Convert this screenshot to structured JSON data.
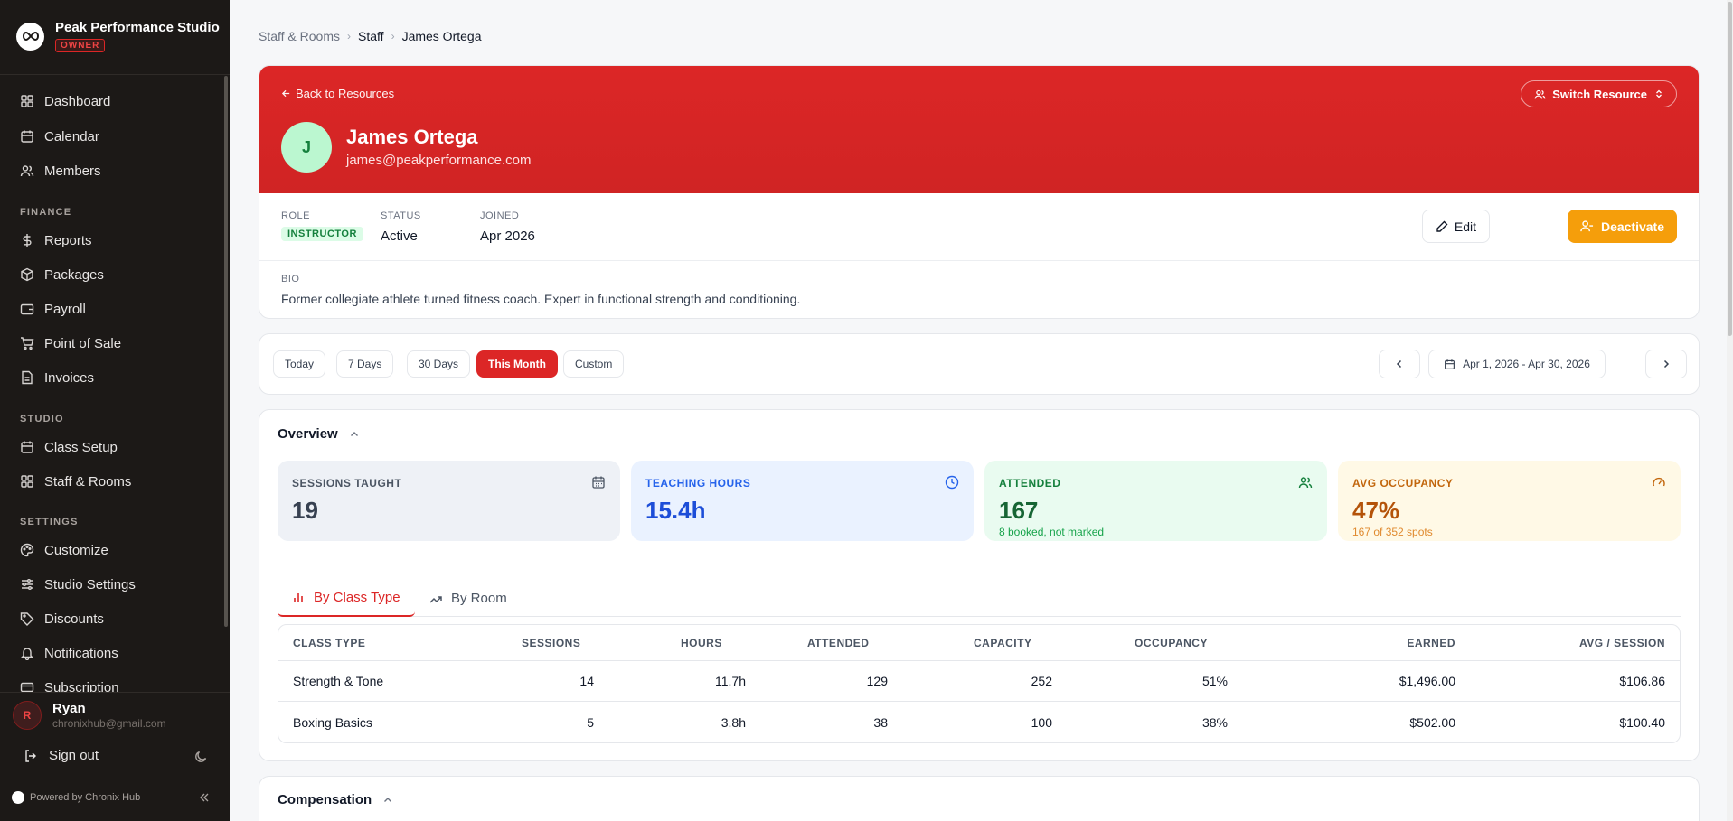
{
  "brand": {
    "name": "Peak Performance Studio",
    "badge": "OWNER"
  },
  "sidebar": {
    "items_main": [
      {
        "label": "Dashboard",
        "icon": "dashboard-icon"
      },
      {
        "label": "Calendar",
        "icon": "calendar-icon"
      },
      {
        "label": "Members",
        "icon": "users-icon"
      }
    ],
    "section_finance": "FINANCE",
    "items_finance": [
      {
        "label": "Reports",
        "icon": "dollar-icon"
      },
      {
        "label": "Packages",
        "icon": "package-icon"
      },
      {
        "label": "Payroll",
        "icon": "wallet-icon"
      },
      {
        "label": "Point of Sale",
        "icon": "cart-icon"
      },
      {
        "label": "Invoices",
        "icon": "file-icon"
      }
    ],
    "section_studio": "STUDIO",
    "items_studio": [
      {
        "label": "Class Setup",
        "icon": "calendar-icon"
      },
      {
        "label": "Staff & Rooms",
        "icon": "grid-icon"
      }
    ],
    "section_settings": "SETTINGS",
    "items_settings": [
      {
        "label": "Customize",
        "icon": "palette-icon"
      },
      {
        "label": "Studio Settings",
        "icon": "sliders-icon"
      },
      {
        "label": "Discounts",
        "icon": "tag-icon"
      },
      {
        "label": "Notifications",
        "icon": "bell-icon"
      },
      {
        "label": "Subscription",
        "icon": "credit-card-icon"
      }
    ]
  },
  "user": {
    "initial": "R",
    "name": "Ryan",
    "email": "chronixhub@gmail.com",
    "signout": "Sign out"
  },
  "powered_by": "Powered by Chronix Hub",
  "breadcrumb": {
    "root": "Staff & Rooms",
    "section": "Staff",
    "current": "James Ortega"
  },
  "profile": {
    "back": "Back to Resources",
    "switch": "Switch Resource",
    "initial": "J",
    "name": "James Ortega",
    "email": "james@peakperformance.com",
    "role_label": "ROLE",
    "role": "INSTRUCTOR",
    "status_label": "STATUS",
    "status": "Active",
    "joined_label": "JOINED",
    "joined": "Apr 2026",
    "edit": "Edit",
    "deactivate": "Deactivate",
    "bio_label": "BIO",
    "bio": "Former collegiate athlete turned fitness coach. Expert in functional strength and conditioning."
  },
  "range": {
    "options": [
      "Today",
      "7 Days",
      "30 Days",
      "This Month",
      "Custom"
    ],
    "active": "This Month",
    "date_range": "Apr 1, 2026 - Apr 30, 2026"
  },
  "overview": {
    "title": "Overview",
    "stats": [
      {
        "label": "SESSIONS TAUGHT",
        "value": "19",
        "sub": "",
        "icon": "calendar-icon"
      },
      {
        "label": "TEACHING HOURS",
        "value": "15.4h",
        "sub": "",
        "icon": "clock-icon"
      },
      {
        "label": "ATTENDED",
        "value": "167",
        "sub": "8 booked, not marked",
        "icon": "users-icon"
      },
      {
        "label": "AVG OCCUPANCY",
        "value": "47%",
        "sub": "167 of 352 spots",
        "icon": "gauge-icon"
      }
    ],
    "tabs": [
      "By Class Type",
      "By Room"
    ],
    "table": {
      "headers": [
        "CLASS TYPE",
        "SESSIONS",
        "HOURS",
        "ATTENDED",
        "CAPACITY",
        "OCCUPANCY",
        "EARNED",
        "AVG / SESSION"
      ],
      "rows": [
        [
          "Strength & Tone",
          "14",
          "11.7h",
          "129",
          "252",
          "51%",
          "$1,496.00",
          "$106.86"
        ],
        [
          "Boxing Basics",
          "5",
          "3.8h",
          "38",
          "100",
          "38%",
          "$502.00",
          "$100.40"
        ]
      ]
    }
  },
  "compensation": {
    "title": "Compensation"
  },
  "colors": {
    "accent": "#dc2626",
    "sidebar": "#1c1917",
    "warning": "#f59e0b"
  }
}
